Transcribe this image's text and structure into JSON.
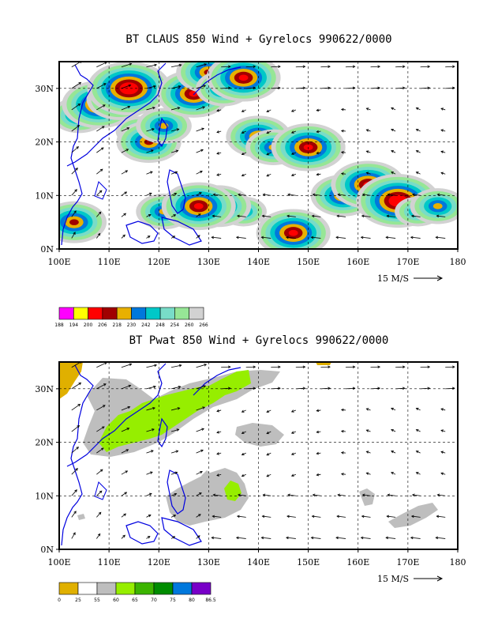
{
  "chart_data": [
    {
      "type": "heatmap",
      "title": "BT CLAUS 850 Wind + Gyrelocs 990622/0000",
      "xlim": [
        100,
        180
      ],
      "ylim": [
        0,
        35
      ],
      "x_ticks": [
        "100E",
        "110E",
        "120E",
        "130E",
        "140E",
        "150E",
        "160E",
        "170E",
        "180"
      ],
      "y_ticks": [
        "0N",
        "10N",
        "20N",
        "30N"
      ],
      "grid": true,
      "reference_vector": "15 M/S",
      "colorbar": {
        "values": [
          "188",
          "194",
          "200",
          "206",
          "218",
          "230",
          "242",
          "248",
          "254",
          "260",
          "266"
        ],
        "colors": [
          "#ff00ff",
          "#ffff00",
          "#ff0000",
          "#a00000",
          "#e8b000",
          "#0078dc",
          "#00c8c8",
          "#78dcc8",
          "#96e696",
          "#d2d2d2"
        ]
      },
      "cells": [
        {
          "lon": 104,
          "lat": 25,
          "level": 5
        },
        {
          "lon": 108,
          "lat": 27,
          "level": 7
        },
        {
          "lon": 112,
          "lat": 28,
          "level": 6
        },
        {
          "lon": 114,
          "lat": 30,
          "level": 8
        },
        {
          "lon": 116,
          "lat": 22,
          "level": 4
        },
        {
          "lon": 118,
          "lat": 20,
          "level": 6
        },
        {
          "lon": 121,
          "lat": 23,
          "level": 5
        },
        {
          "lon": 127,
          "lat": 29,
          "level": 7
        },
        {
          "lon": 130,
          "lat": 33,
          "level": 6
        },
        {
          "lon": 133,
          "lat": 30,
          "level": 5
        },
        {
          "lon": 137,
          "lat": 32,
          "level": 7
        },
        {
          "lon": 140,
          "lat": 21,
          "level": 6
        },
        {
          "lon": 143,
          "lat": 19,
          "level": 5
        },
        {
          "lon": 150,
          "lat": 19,
          "level": 7
        },
        {
          "lon": 157,
          "lat": 10,
          "level": 6
        },
        {
          "lon": 162,
          "lat": 12,
          "level": 7
        },
        {
          "lon": 168,
          "lat": 9,
          "level": 8
        },
        {
          "lon": 172,
          "lat": 7,
          "level": 4
        },
        {
          "lon": 176,
          "lat": 8,
          "level": 5
        },
        {
          "lon": 137,
          "lat": 7,
          "level": 4
        },
        {
          "lon": 132,
          "lat": 8,
          "level": 6
        },
        {
          "lon": 121,
          "lat": 7,
          "level": 5
        },
        {
          "lon": 128,
          "lat": 8,
          "level": 7
        },
        {
          "lon": 103,
          "lat": 5,
          "level": 6
        },
        {
          "lon": 147,
          "lat": 3,
          "level": 7
        }
      ]
    },
    {
      "type": "heatmap",
      "title": "BT Pwat 850 Wind + Gyrelocs 990622/0000",
      "xlim": [
        100,
        180
      ],
      "ylim": [
        0,
        35
      ],
      "x_ticks": [
        "100E",
        "110E",
        "120E",
        "130E",
        "140E",
        "150E",
        "160E",
        "170E",
        "180"
      ],
      "y_ticks": [
        "0N",
        "10N",
        "20N",
        "30N"
      ],
      "grid": true,
      "reference_vector": "15 M/S",
      "colorbar": {
        "values": [
          "0",
          "25",
          "55",
          "60",
          "65",
          "70",
          "75",
          "80",
          "86.5"
        ],
        "colors": [
          "#e0b000",
          "#ffffff",
          "#bebebe",
          "#96ee00",
          "#3cb400",
          "#008c00",
          "#0078dc",
          "#7800c8"
        ]
      },
      "regions": [
        {
          "value_range": "55-60",
          "lon": [
            106,
            128
          ],
          "lat": [
            16,
            28
          ]
        },
        {
          "value_range": "60-65",
          "lon": [
            110,
            127
          ],
          "lat": [
            18,
            26
          ]
        },
        {
          "value_range": "55-60",
          "lon": [
            125,
            145
          ],
          "lat": [
            27,
            35
          ]
        },
        {
          "value_range": "60-65",
          "lon": [
            128,
            140
          ],
          "lat": [
            29,
            34
          ]
        },
        {
          "value_range": "55-60",
          "lon": [
            120,
            140
          ],
          "lat": [
            5,
            12
          ]
        },
        {
          "value_range": "60-65",
          "lon": [
            133,
            137
          ],
          "lat": [
            10,
            13
          ]
        },
        {
          "value_range": "55-60",
          "lon": [
            135,
            145
          ],
          "lat": [
            20,
            24
          ]
        },
        {
          "value_range": "55-60",
          "lon": [
            165,
            175
          ],
          "lat": [
            5,
            9
          ]
        },
        {
          "value_range": "0-25",
          "lon": [
            100,
            104
          ],
          "lat": [
            32,
            35
          ]
        }
      ]
    }
  ]
}
